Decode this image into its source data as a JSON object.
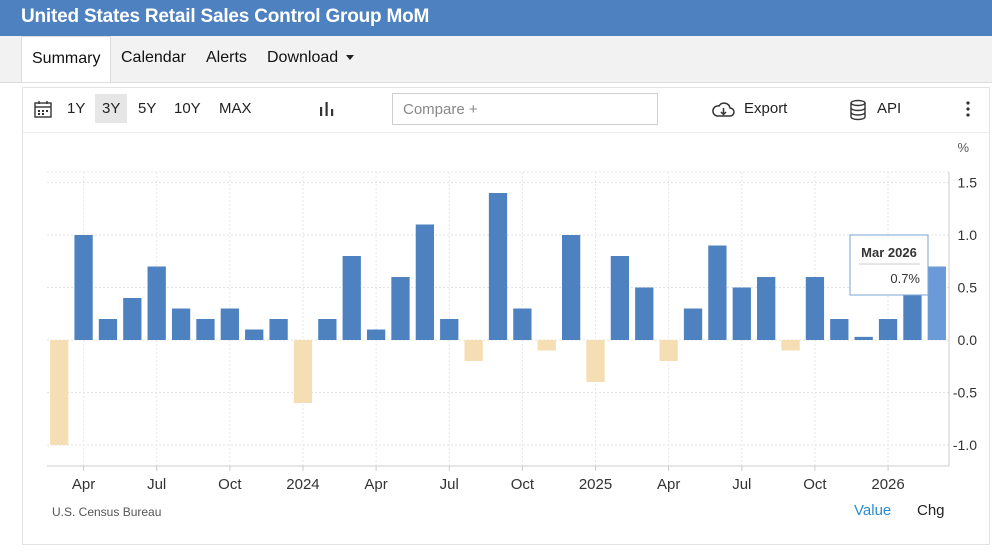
{
  "header": {
    "title": "United States Retail Sales Control Group MoM"
  },
  "tabs": [
    {
      "label": "Summary"
    },
    {
      "label": "Calendar"
    },
    {
      "label": "Alerts"
    },
    {
      "label": "Download"
    }
  ],
  "toolbar": {
    "ranges": [
      "1Y",
      "3Y",
      "5Y",
      "10Y",
      "MAX"
    ],
    "active_range": "3Y",
    "compare_placeholder": "Compare +",
    "export_label": "Export",
    "api_label": "API"
  },
  "colors": {
    "positive": "#4d81c0",
    "negative": "#f5deb3",
    "highlight": "#6a9ad8",
    "header": "#4d81c0"
  },
  "chart_data": {
    "type": "bar",
    "unit": "%",
    "ylim": [
      -1.2,
      1.6
    ],
    "y_ticks": [
      1.5,
      1.0,
      0.5,
      0.0,
      -0.5,
      -1.0
    ],
    "y_tick_labels": [
      "1.5",
      "1.0",
      "0.5",
      "0.0",
      "-0.5",
      "-1.0"
    ],
    "x_tick_labels": [
      "Apr",
      "Jul",
      "Oct",
      "2024",
      "Apr",
      "Jul",
      "Oct",
      "2025",
      "Apr",
      "Jul",
      "Oct",
      "2026"
    ],
    "x_tick_months": [
      "2023-04",
      "2023-07",
      "2023-10",
      "2024-01",
      "2024-04",
      "2024-07",
      "2024-10",
      "2025-01",
      "2025-04",
      "2025-07",
      "2025-10",
      "2026-01"
    ],
    "categories": [
      "2023-03",
      "2023-04",
      "2023-05",
      "2023-06",
      "2023-07",
      "2023-08",
      "2023-09",
      "2023-10",
      "2023-11",
      "2023-12",
      "2024-01",
      "2024-02",
      "2024-03",
      "2024-04",
      "2024-05",
      "2024-06",
      "2024-07",
      "2024-08",
      "2024-09",
      "2024-10",
      "2024-11",
      "2024-12",
      "2025-01",
      "2025-02",
      "2025-03",
      "2025-04",
      "2025-05",
      "2025-06",
      "2025-07",
      "2025-08",
      "2025-09",
      "2025-10",
      "2025-11",
      "2025-12",
      "2026-01",
      "2026-02",
      "2026-03"
    ],
    "values": [
      -1.0,
      1.0,
      0.2,
      0.4,
      0.7,
      0.3,
      0.2,
      0.3,
      0.1,
      0.2,
      -0.6,
      0.2,
      0.8,
      0.1,
      0.6,
      1.1,
      0.2,
      -0.2,
      1.4,
      0.3,
      -0.1,
      1.0,
      -0.4,
      0.8,
      0.5,
      -0.2,
      0.3,
      0.9,
      0.5,
      0.6,
      -0.1,
      0.6,
      0.2,
      0.03,
      0.2,
      0.5,
      0.7
    ],
    "grid": true,
    "tooltip": {
      "title": "Mar 2026",
      "value": "0.7%"
    },
    "source": "U.S. Census Bureau",
    "footer_links": [
      "Value",
      "Chg"
    ]
  }
}
